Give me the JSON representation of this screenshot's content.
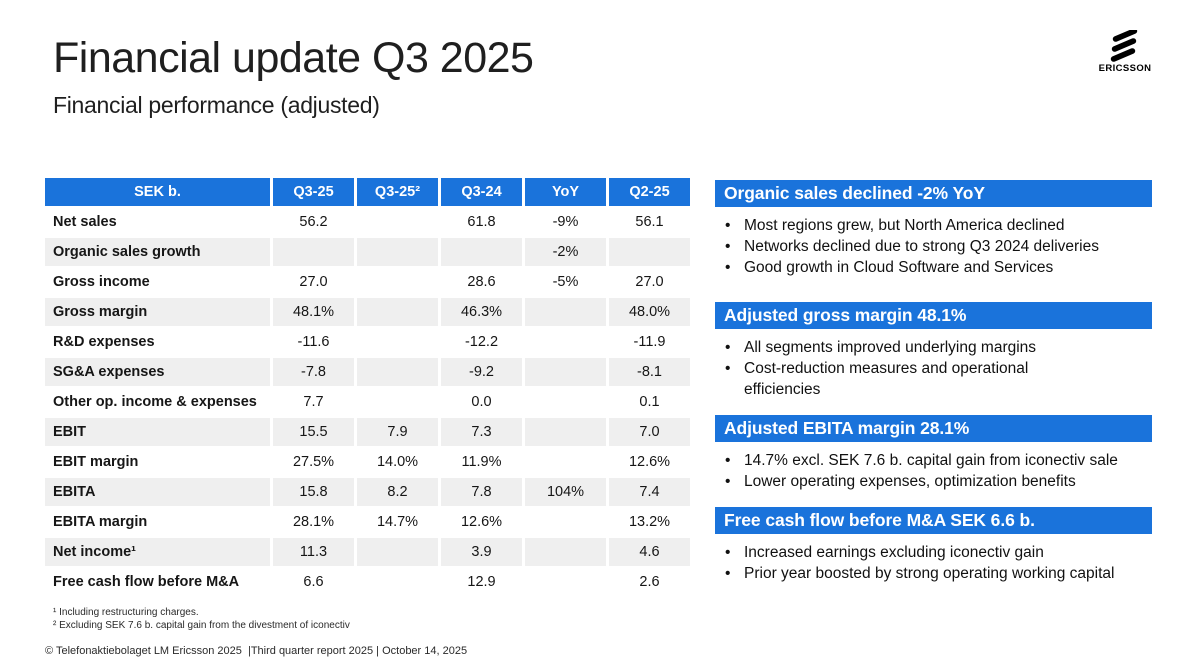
{
  "slide": {
    "title": "Financial update Q3 2025",
    "subtitle": "Financial performance (adjusted)",
    "footnote_1": "¹ Including restructuring charges.",
    "footnote_2": "² Excluding SEK 7.6 b. capital gain from the divestment of iconectiv",
    "footer": "© Telefonaktiebolaget LM Ericsson 2025  |Third quarter report 2025 | October 14, 2025"
  },
  "logo": {
    "brand": "ERICSSON"
  },
  "colors": {
    "accent_blue": "#1a73db",
    "row_alt_gray": "#efefef",
    "text_dark": "#161616"
  },
  "table": {
    "columns": [
      "SEK b.",
      "Q3-25",
      "Q3-25²",
      "Q3-24",
      "YoY",
      "Q2-25"
    ],
    "rows": [
      {
        "label": "Net sales",
        "values": [
          "56.2",
          "",
          "61.8",
          "-9%",
          "56.1"
        ]
      },
      {
        "label": "Organic sales growth",
        "values": [
          "",
          "",
          "",
          "-2%",
          ""
        ]
      },
      {
        "label": "Gross income",
        "values": [
          "27.0",
          "",
          "28.6",
          "-5%",
          "27.0"
        ]
      },
      {
        "label": "Gross margin",
        "values": [
          "48.1%",
          "",
          "46.3%",
          "",
          "48.0%"
        ]
      },
      {
        "label": "R&D expenses",
        "values": [
          "-11.6",
          "",
          "-12.2",
          "",
          "-11.9"
        ]
      },
      {
        "label": "SG&A expenses",
        "values": [
          "-7.8",
          "",
          "-9.2",
          "",
          "-8.1"
        ]
      },
      {
        "label": "Other op. income & expenses",
        "values": [
          "7.7",
          "",
          "0.0",
          "",
          "0.1"
        ]
      },
      {
        "label": "EBIT",
        "values": [
          "15.5",
          "7.9",
          "7.3",
          "",
          "7.0"
        ]
      },
      {
        "label": "EBIT margin",
        "values": [
          "27.5%",
          "14.0%",
          "11.9%",
          "",
          "12.6%"
        ]
      },
      {
        "label": "EBITA",
        "values": [
          "15.8",
          "8.2",
          "7.8",
          "104%",
          "7.4"
        ]
      },
      {
        "label": "EBITA margin",
        "values": [
          "28.1%",
          "14.7%",
          "12.6%",
          "",
          "13.2%"
        ]
      },
      {
        "label": "Net income¹",
        "values": [
          "11.3",
          "",
          "3.9",
          "",
          "4.6"
        ]
      },
      {
        "label": "Free cash flow before M&A",
        "values": [
          "6.6",
          "",
          "12.9",
          "",
          "2.6"
        ]
      }
    ]
  },
  "highlights": [
    {
      "title": "Organic sales declined -2% YoY",
      "bullets": [
        "Most regions grew, but North America declined",
        "Networks declined due to strong Q3 2024 deliveries",
        "Good growth in Cloud Software and Services"
      ]
    },
    {
      "title": "Adjusted gross margin 48.1%",
      "bullets": [
        "All segments improved underlying margins",
        "Cost-reduction measures and operational\nefficiencies"
      ]
    },
    {
      "title": "Adjusted EBITA margin 28.1%",
      "bullets": [
        "14.7% excl. SEK 7.6 b. capital gain from iconectiv sale",
        "Lower operating expenses, optimization benefits"
      ]
    },
    {
      "title": "Free cash flow before M&A SEK 6.6 b.",
      "bullets": [
        "Increased earnings excluding iconectiv gain",
        "Prior year boosted by strong operating working capital"
      ]
    }
  ]
}
